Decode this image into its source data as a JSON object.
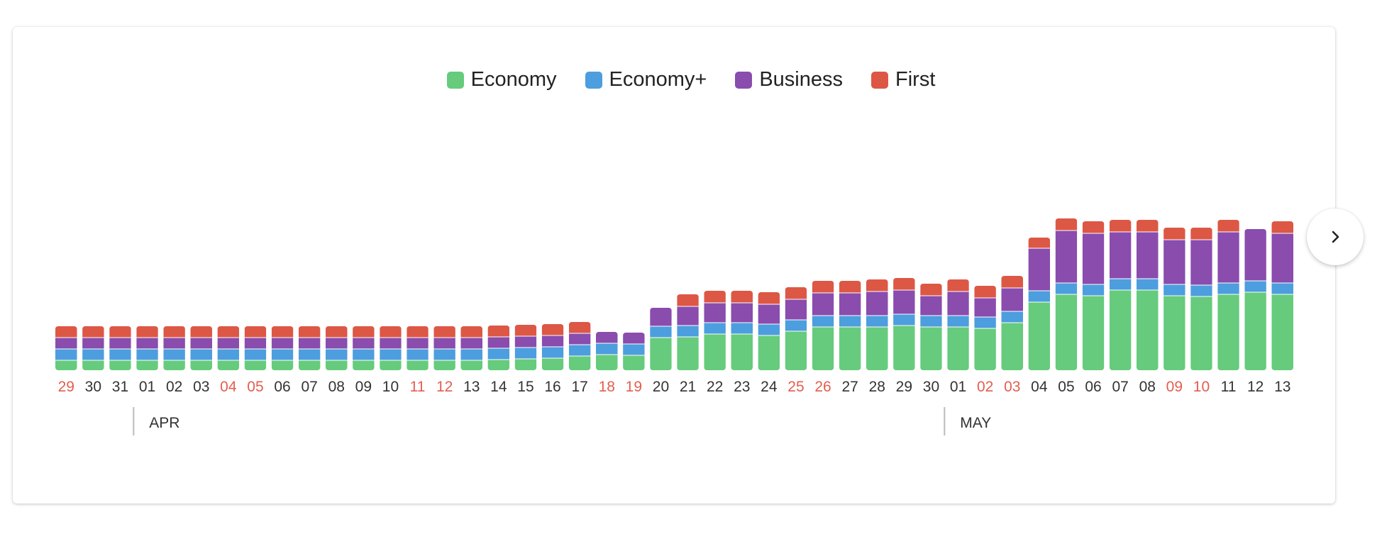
{
  "chart_data": {
    "type": "bar",
    "stacked": true,
    "legend_position": "top-center",
    "grid": false,
    "ylim": [
      0,
      215
    ],
    "categories": [
      "29",
      "30",
      "31",
      "01",
      "02",
      "03",
      "04",
      "05",
      "06",
      "07",
      "08",
      "09",
      "10",
      "11",
      "12",
      "13",
      "14",
      "15",
      "16",
      "17",
      "18",
      "19",
      "20",
      "21",
      "22",
      "23",
      "24",
      "25",
      "26",
      "27",
      "28",
      "29",
      "30",
      "01",
      "02",
      "03",
      "04",
      "05",
      "06",
      "07",
      "08",
      "09",
      "10",
      "11",
      "12",
      "13"
    ],
    "weekend": [
      true,
      false,
      false,
      false,
      false,
      false,
      true,
      true,
      false,
      false,
      false,
      false,
      false,
      true,
      true,
      false,
      false,
      false,
      false,
      false,
      true,
      true,
      false,
      false,
      false,
      false,
      false,
      true,
      true,
      false,
      false,
      false,
      false,
      false,
      true,
      true,
      false,
      false,
      false,
      false,
      false,
      true,
      true,
      false,
      false,
      false
    ],
    "months": [
      {
        "label": "APR",
        "start_index": 3
      },
      {
        "label": "MAY",
        "start_index": 33
      }
    ],
    "series": [
      {
        "name": "Economy",
        "color": "#66cb7c",
        "values": [
          14,
          14,
          14,
          14,
          14,
          14,
          14,
          14,
          14,
          14,
          14,
          14,
          14,
          14,
          14,
          14,
          15,
          16,
          17,
          20,
          22,
          21,
          46,
          47,
          51,
          51,
          49,
          55,
          61,
          61,
          61,
          63,
          61,
          61,
          59,
          67,
          96,
          107,
          105,
          113,
          113,
          105,
          104,
          107,
          110,
          107
        ]
      },
      {
        "name": "Economy+",
        "color": "#4c9ede",
        "values": [
          16,
          16,
          16,
          16,
          16,
          16,
          16,
          16,
          16,
          16,
          16,
          16,
          16,
          16,
          16,
          16,
          16,
          16,
          16,
          16,
          16,
          16,
          16,
          16,
          16,
          16,
          16,
          16,
          16,
          16,
          16,
          16,
          16,
          16,
          16,
          16,
          16,
          16,
          16,
          16,
          16,
          16,
          16,
          16,
          16,
          16
        ]
      },
      {
        "name": "Business",
        "color": "#8a4cad",
        "values": [
          16,
          16,
          16,
          16,
          16,
          16,
          16,
          16,
          16,
          16,
          16,
          16,
          16,
          16,
          16,
          16,
          16,
          16,
          16,
          16,
          16,
          16,
          26,
          27,
          28,
          28,
          28,
          29,
          32,
          32,
          34,
          34,
          28,
          34,
          27,
          33,
          60,
          74,
          72,
          66,
          66,
          63,
          64,
          72,
          73,
          70
        ]
      },
      {
        "name": "First",
        "color": "#dd5745",
        "values": [
          16,
          16,
          16,
          16,
          16,
          16,
          16,
          16,
          16,
          16,
          16,
          16,
          16,
          16,
          16,
          16,
          16,
          16,
          16,
          16,
          0,
          0,
          0,
          17,
          17,
          17,
          17,
          17,
          17,
          17,
          17,
          17,
          17,
          17,
          17,
          17,
          15,
          17,
          17,
          17,
          17,
          17,
          17,
          17,
          0,
          17
        ]
      }
    ]
  },
  "ui": {
    "next_label": "›"
  }
}
